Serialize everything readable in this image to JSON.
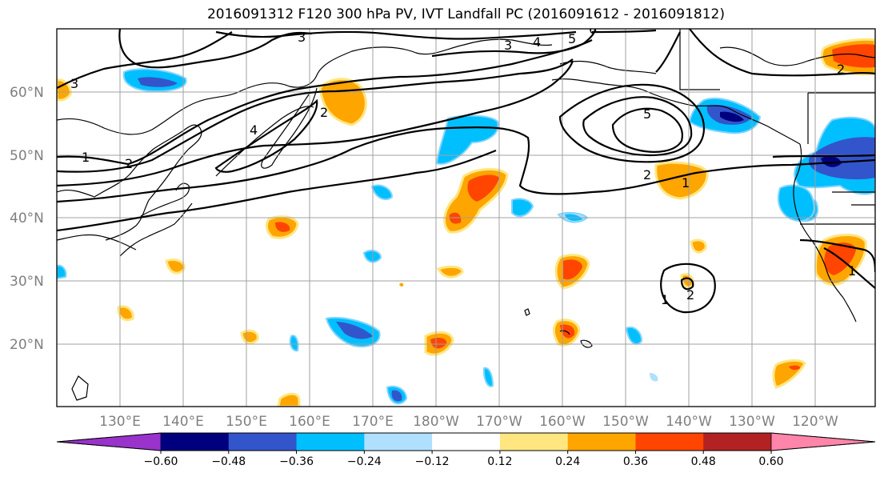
{
  "title": "2016091312 F120 300 hPa PV, IVT Landfall PC (2016091612 - 2016091812)",
  "lat_labels": [
    "60°N",
    "50°N",
    "40°N",
    "30°N",
    "20°N"
  ],
  "lon_labels": [
    "130°E",
    "140°E",
    "150°E",
    "160°E",
    "170°E",
    "180°W",
    "170°W",
    "160°W",
    "150°W",
    "140°W",
    "130°W",
    "120°W"
  ],
  "colorbar": {
    "colors": [
      "#9933cc",
      "#00007f",
      "#3355cc",
      "#00bfff",
      "#b0e0ff",
      "#ffffff",
      "#ffe680",
      "#ffa500",
      "#ff4500",
      "#b22222",
      "#ff85aa"
    ],
    "tick_labels": [
      "−0.60",
      "−0.48",
      "−0.36",
      "−0.24",
      "−0.12",
      "0.12",
      "0.24",
      "0.36",
      "0.48",
      "0.60"
    ]
  },
  "contour_labels": [
    "1",
    "2",
    "3",
    "3",
    "4",
    "5",
    "6",
    "4",
    "3",
    "5",
    "2",
    "1",
    "2",
    "1",
    "2",
    "1",
    "2"
  ]
}
